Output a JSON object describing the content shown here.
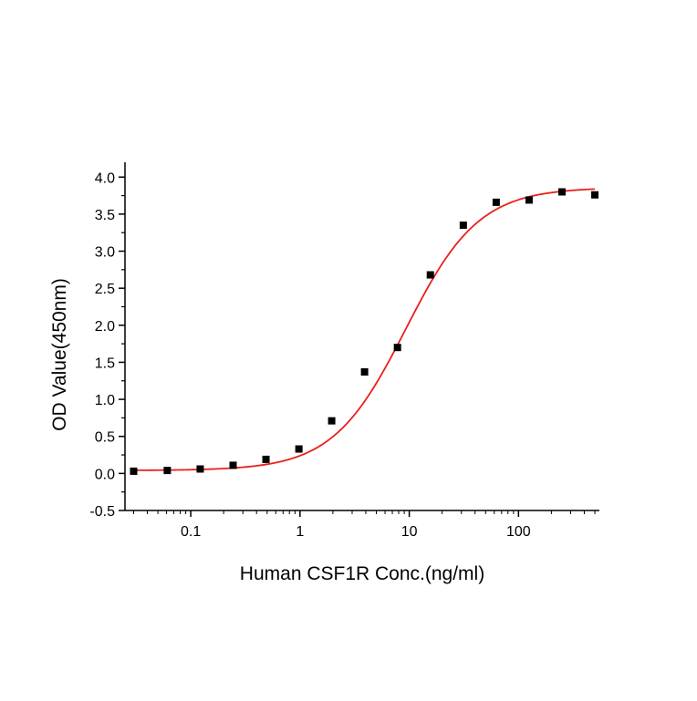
{
  "chart_data": {
    "type": "scatter",
    "title": "",
    "xlabel": "Human CSF1R Conc.(ng/ml)",
    "ylabel": "OD Value(450nm)",
    "x_scale": "log",
    "xlim": [
      0.025,
      550
    ],
    "ylim": [
      -0.5,
      4.2
    ],
    "x_ticks": [
      0.1,
      1,
      10,
      100
    ],
    "x_tick_labels": [
      "0.1",
      "1",
      "10",
      "100"
    ],
    "y_ticks": [
      -0.5,
      0.0,
      0.5,
      1.0,
      1.5,
      2.0,
      2.5,
      3.0,
      3.5,
      4.0
    ],
    "y_tick_labels": [
      "-0.5",
      "0.0",
      "0.5",
      "1.0",
      "1.5",
      "2.0",
      "2.5",
      "3.0",
      "3.5",
      "4.0"
    ],
    "grid": false,
    "series": [
      {
        "type": "scatter",
        "marker": "square",
        "color": "#000000",
        "x": [
          0.03,
          0.061,
          0.122,
          0.244,
          0.488,
          0.977,
          1.95,
          3.9,
          7.8,
          15.6,
          31.25,
          62.5,
          125,
          250,
          500
        ],
        "y": [
          0.03,
          0.04,
          0.06,
          0.11,
          0.19,
          0.33,
          0.71,
          1.37,
          1.7,
          2.68,
          3.35,
          3.66,
          3.69,
          3.8,
          3.76
        ]
      },
      {
        "type": "line",
        "color": "#e8201c",
        "model": "4PL",
        "x_range": [
          0.03,
          500
        ],
        "bottom": 0.04,
        "top": 3.86,
        "ec50": 9.3,
        "hill": 1.3
      }
    ]
  }
}
